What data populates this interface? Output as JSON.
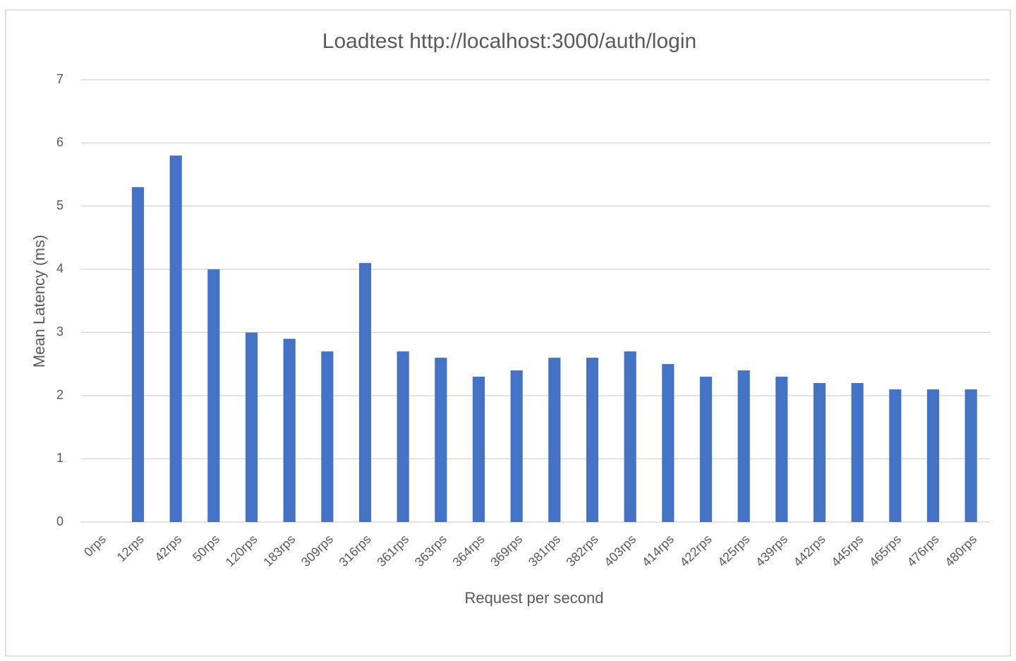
{
  "chart_data": {
    "type": "bar",
    "title": "Loadtest  http://localhost:3000/auth/login",
    "x_label": "Request per second",
    "y_label": "Mean Latency (ms)",
    "categories": [
      "0rps",
      "12rps",
      "42rps",
      "50rps",
      "120rps",
      "183rps",
      "309rps",
      "316rps",
      "361rps",
      "363rps",
      "364rps",
      "369rps",
      "381rps",
      "382rps",
      "403rps",
      "414rps",
      "422rps",
      "425rps",
      "439rps",
      "442rps",
      "445rps",
      "465rps",
      "476rps",
      "480rps"
    ],
    "values": [
      0,
      5.3,
      5.8,
      4.0,
      3.0,
      2.9,
      2.7,
      4.1,
      2.7,
      2.6,
      2.3,
      2.4,
      2.6,
      2.6,
      2.7,
      2.5,
      2.3,
      2.4,
      2.3,
      2.2,
      2.2,
      2.1,
      2.1,
      2.1
    ],
    "color": "#4472c4",
    "ylim": [
      0,
      7
    ],
    "yticks": [
      0,
      1,
      2,
      3,
      4,
      5,
      6,
      7
    ],
    "grid": true
  }
}
